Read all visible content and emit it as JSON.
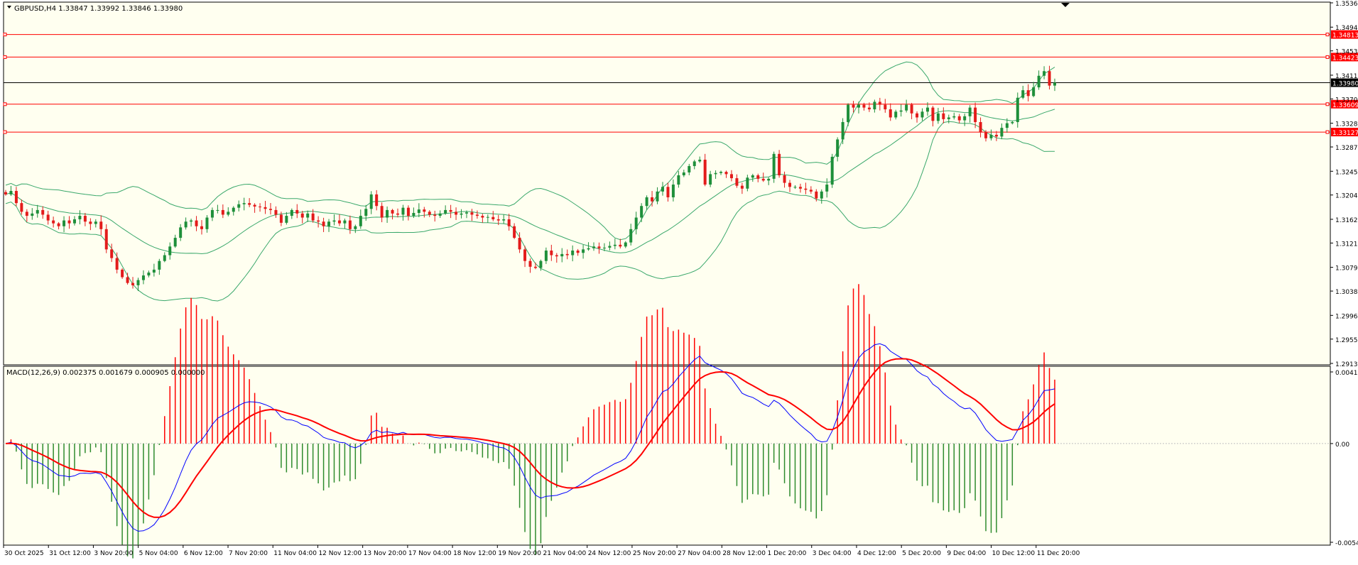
{
  "colors": {
    "background": "#fffff0",
    "axis_bg": "#ffffff",
    "frame": "#000000",
    "bull_candle": "#1e8f3a",
    "bear_candle": "#e31b1b",
    "bands": "#3aa86b",
    "hline": "#ff0000",
    "current_line": "#000000",
    "macd_line": "#0000ff",
    "signal_line": "#ff0000",
    "hist_pos": "#ff0000",
    "hist_neg": "#2e8b2e"
  },
  "header": {
    "symbol_label": "GBPUSD,H4  1.33847 1.33992 1.33846 1.33980",
    "collapse_icon": "triangle-down-icon",
    "shift_marker_icon": "triangle-down-icon"
  },
  "chart_data": [
    {
      "type": "candlestick",
      "title": "GBPUSD,H4",
      "ylim": [
        1.2913,
        1.3536
      ],
      "price_ticks": [
        "1.35360",
        "1.34940",
        "1.34530",
        "1.34110",
        "1.33700",
        "1.33280",
        "1.32870",
        "1.32450",
        "1.32040",
        "1.31620",
        "1.31210",
        "1.30790",
        "1.30380",
        "1.29960",
        "1.29550",
        "1.29130"
      ],
      "price_tags": [
        {
          "label": "1.34813",
          "value": 1.34813,
          "kind": "level"
        },
        {
          "label": "1.34423",
          "value": 1.34423,
          "kind": "level"
        },
        {
          "label": "1.33980",
          "value": 1.3398,
          "kind": "current"
        },
        {
          "label": "1.33609",
          "value": 1.33609,
          "kind": "level"
        },
        {
          "label": "1.33127",
          "value": 1.33127,
          "kind": "level"
        }
      ],
      "time_labels": [
        "30 Oct 2025",
        "31 Oct 12:00",
        "3 Nov 20:00",
        "5 Nov 04:00",
        "6 Nov 12:00",
        "7 Nov 20:00",
        "11 Nov 04:00",
        "12 Nov 12:00",
        "13 Nov 20:00",
        "17 Nov 04:00",
        "18 Nov 12:00",
        "19 Nov 20:00",
        "21 Nov 04:00",
        "24 Nov 12:00",
        "25 Nov 20:00",
        "27 Nov 04:00",
        "28 Nov 12:00",
        "1 Dec 20:00",
        "3 Dec 04:00",
        "4 Dec 12:00",
        "5 Dec 20:00",
        "9 Dec 04:00",
        "10 Dec 12:00",
        "11 Dec 20:00"
      ],
      "close_series": [
        1.3205,
        1.3211,
        1.319,
        1.3175,
        1.3168,
        1.3172,
        1.3178,
        1.317,
        1.316,
        1.3155,
        1.315,
        1.316,
        1.3155,
        1.3162,
        1.3168,
        1.3158,
        1.3154,
        1.3158,
        1.3145,
        1.311,
        1.3095,
        1.3075,
        1.3062,
        1.3052,
        1.3048,
        1.3057,
        1.3065,
        1.307,
        1.3075,
        1.309,
        1.31,
        1.3115,
        1.313,
        1.3148,
        1.3158,
        1.316,
        1.315,
        1.3145,
        1.3165,
        1.3178,
        1.3178,
        1.317,
        1.3175,
        1.3182,
        1.3188,
        1.319,
        1.3187,
        1.3184,
        1.3183,
        1.318,
        1.3178,
        1.317,
        1.3156,
        1.3168,
        1.3178,
        1.3172,
        1.3165,
        1.3172,
        1.316,
        1.3158,
        1.315,
        1.3158,
        1.316,
        1.3155,
        1.316,
        1.3145,
        1.315,
        1.3168,
        1.318,
        1.3205,
        1.3185,
        1.3165,
        1.3178,
        1.3172,
        1.317,
        1.3182,
        1.3168,
        1.3173,
        1.3179,
        1.3175,
        1.317,
        1.3168,
        1.3172,
        1.3178,
        1.3175,
        1.317,
        1.3172,
        1.3174,
        1.317,
        1.3168,
        1.3165,
        1.3166,
        1.3162,
        1.316,
        1.3162,
        1.315,
        1.313,
        1.311,
        1.309,
        1.308,
        1.3078,
        1.309,
        1.3108,
        1.31,
        1.3098,
        1.3102,
        1.31,
        1.3108,
        1.3104,
        1.311,
        1.3112,
        1.3115,
        1.3112,
        1.3113,
        1.3116,
        1.3118,
        1.3115,
        1.3122,
        1.3145,
        1.3165,
        1.3185,
        1.32,
        1.3193,
        1.321,
        1.3218,
        1.32,
        1.3222,
        1.3238,
        1.3243,
        1.3254,
        1.3262,
        1.3265,
        1.3222,
        1.324,
        1.3242,
        1.3244,
        1.324,
        1.3233,
        1.322,
        1.3215,
        1.3234,
        1.3238,
        1.3232,
        1.3229,
        1.3232,
        1.3275,
        1.3238,
        1.3225,
        1.3218,
        1.3218,
        1.3215,
        1.3213,
        1.321,
        1.3198,
        1.321,
        1.3222,
        1.327,
        1.33,
        1.333,
        1.336,
        1.3355,
        1.336,
        1.3355,
        1.3352,
        1.3365,
        1.336,
        1.3352,
        1.3338,
        1.3348,
        1.335,
        1.336,
        1.3345,
        1.3338,
        1.3348,
        1.3355,
        1.3332,
        1.3345,
        1.3335,
        1.3338,
        1.334,
        1.3333,
        1.334,
        1.3355,
        1.333,
        1.3312,
        1.3302,
        1.3308,
        1.3305,
        1.332,
        1.3328,
        1.333,
        1.3372,
        1.3385,
        1.3375,
        1.339,
        1.341,
        1.3418,
        1.3393,
        1.3398
      ]
    },
    {
      "type": "line",
      "title": "MACD(12,26,9) 0.002375 0.001679 0.000905 0.000000",
      "ylim": [
        -0.00549,
        0.00416
      ],
      "y_ticks": [
        "0.00416",
        "0.00",
        "-0.00549"
      ],
      "series": [
        {
          "name": "MACD",
          "role": "main",
          "color": "#0000ff"
        },
        {
          "name": "Signal",
          "role": "signal",
          "color": "#ff0000"
        }
      ]
    }
  ]
}
